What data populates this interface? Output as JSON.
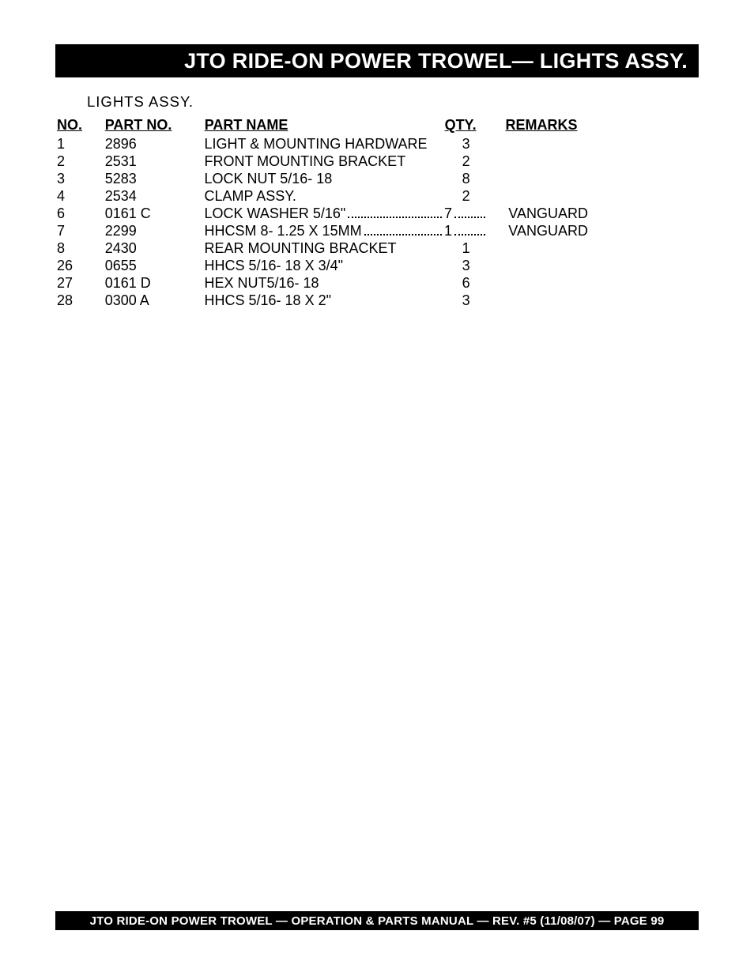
{
  "header": {
    "title": "JTO RIDE-ON POWER TROWEL— LIGHTS ASSY."
  },
  "subtitle": "LIGHTS  ASSY.",
  "columns": {
    "no": "NO.",
    "part_no": "PART NO.",
    "part_name": "PART NAME",
    "qty": "QTY.",
    "remarks": "REMARKS"
  },
  "rows": [
    {
      "no": "1",
      "part_no": "2896",
      "part_name": "LIGHT & MOUNTING HARDWARE",
      "qty": "3",
      "remarks": "",
      "dotted": false
    },
    {
      "no": "2",
      "part_no": "2531",
      "part_name": "FRONT MOUNTING BRACKET",
      "qty": "2",
      "remarks": "",
      "dotted": false
    },
    {
      "no": "3",
      "part_no": "5283",
      "part_name": "LOCK NUT 5/16- 18",
      "qty": "8",
      "remarks": "",
      "dotted": false
    },
    {
      "no": "4",
      "part_no": "2534",
      "part_name": "CLAMP ASSY.",
      "qty": "2",
      "remarks": "",
      "dotted": false
    },
    {
      "no": "6",
      "part_no": "0161 C",
      "part_name": "LOCK WASHER 5/16\"",
      "qty": "7",
      "remarks": "VANGUARD",
      "dotted": true
    },
    {
      "no": "7",
      "part_no": "2299",
      "part_name": "HHCSM 8- 1.25 X 15MM",
      "qty": "1",
      "remarks": "VANGUARD",
      "dotted": true
    },
    {
      "no": "8",
      "part_no": "2430",
      "part_name": "REAR MOUNTING BRACKET",
      "qty": "1",
      "remarks": "",
      "dotted": false
    },
    {
      "no": "26",
      "part_no": "0655",
      "part_name": "HHCS 5/16- 18 X 3/4\"",
      "qty": "3",
      "remarks": "",
      "dotted": false
    },
    {
      "no": "27",
      "part_no": "0161 D",
      "part_name": "HEX NUT5/16- 18",
      "qty": "6",
      "remarks": "",
      "dotted": false
    },
    {
      "no": "28",
      "part_no": "0300 A",
      "part_name": "HHCS 5/16- 18 X 2\"",
      "qty": "3",
      "remarks": "",
      "dotted": false
    }
  ],
  "footer": {
    "text": "JTO RIDE-ON POWER TROWEL —   OPERATION & PARTS  MANUAL — REV. #5 (11/08/07) — PAGE 99"
  },
  "colors": {
    "bar_bg": "#000000",
    "bar_text": "#ffffff",
    "page_bg": "#ffffff",
    "text": "#000000"
  }
}
